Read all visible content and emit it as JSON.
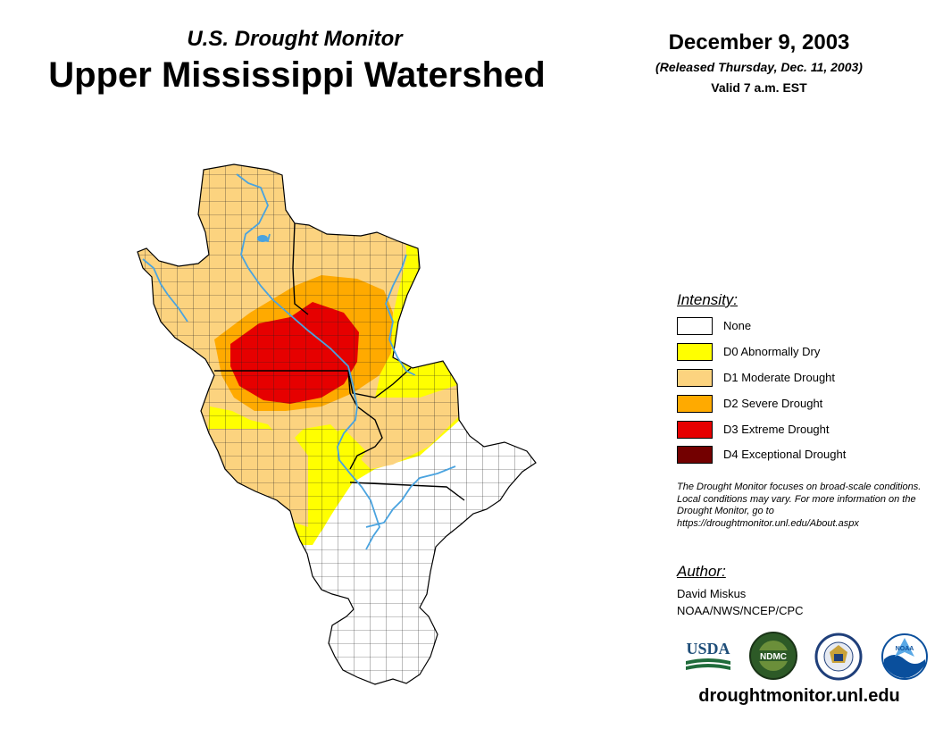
{
  "header": {
    "subtitle": "U.S. Drought Monitor",
    "title": "Upper Mississippi Watershed",
    "date": "December 9, 2003",
    "released": "(Released Thursday, Dec. 11, 2003)",
    "valid": "Valid 7 a.m. EST"
  },
  "colors": {
    "none": "#ffffff",
    "d0": "#ffff00",
    "d1": "#fcd37f",
    "d2": "#ffaa00",
    "d3": "#e60000",
    "d4": "#730000",
    "rivers": "#4aa3df"
  },
  "legend": {
    "title": "Intensity:",
    "items": [
      {
        "label": "None",
        "color": "#ffffff"
      },
      {
        "label": "D0 Abnormally Dry",
        "color": "#ffff00"
      },
      {
        "label": "D1 Moderate Drought",
        "color": "#fcd37f"
      },
      {
        "label": "D2 Severe Drought",
        "color": "#ffaa00"
      },
      {
        "label": "D3 Extreme Drought",
        "color": "#e60000"
      },
      {
        "label": "D4 Exceptional Drought",
        "color": "#730000"
      }
    ]
  },
  "disclaimer": "The Drought Monitor focuses on broad-scale conditions. Local conditions may vary. For more information on the Drought Monitor, go to https://droughtmonitor.unl.edu/About.aspx",
  "author": {
    "title": "Author:",
    "name": "David Miskus",
    "org": "NOAA/NWS/NCEP/CPC"
  },
  "logos": {
    "usda": "USDA",
    "ndmc": "NDMC",
    "noaa": "NOAA"
  },
  "website": "droughtmonitor.unl.edu"
}
